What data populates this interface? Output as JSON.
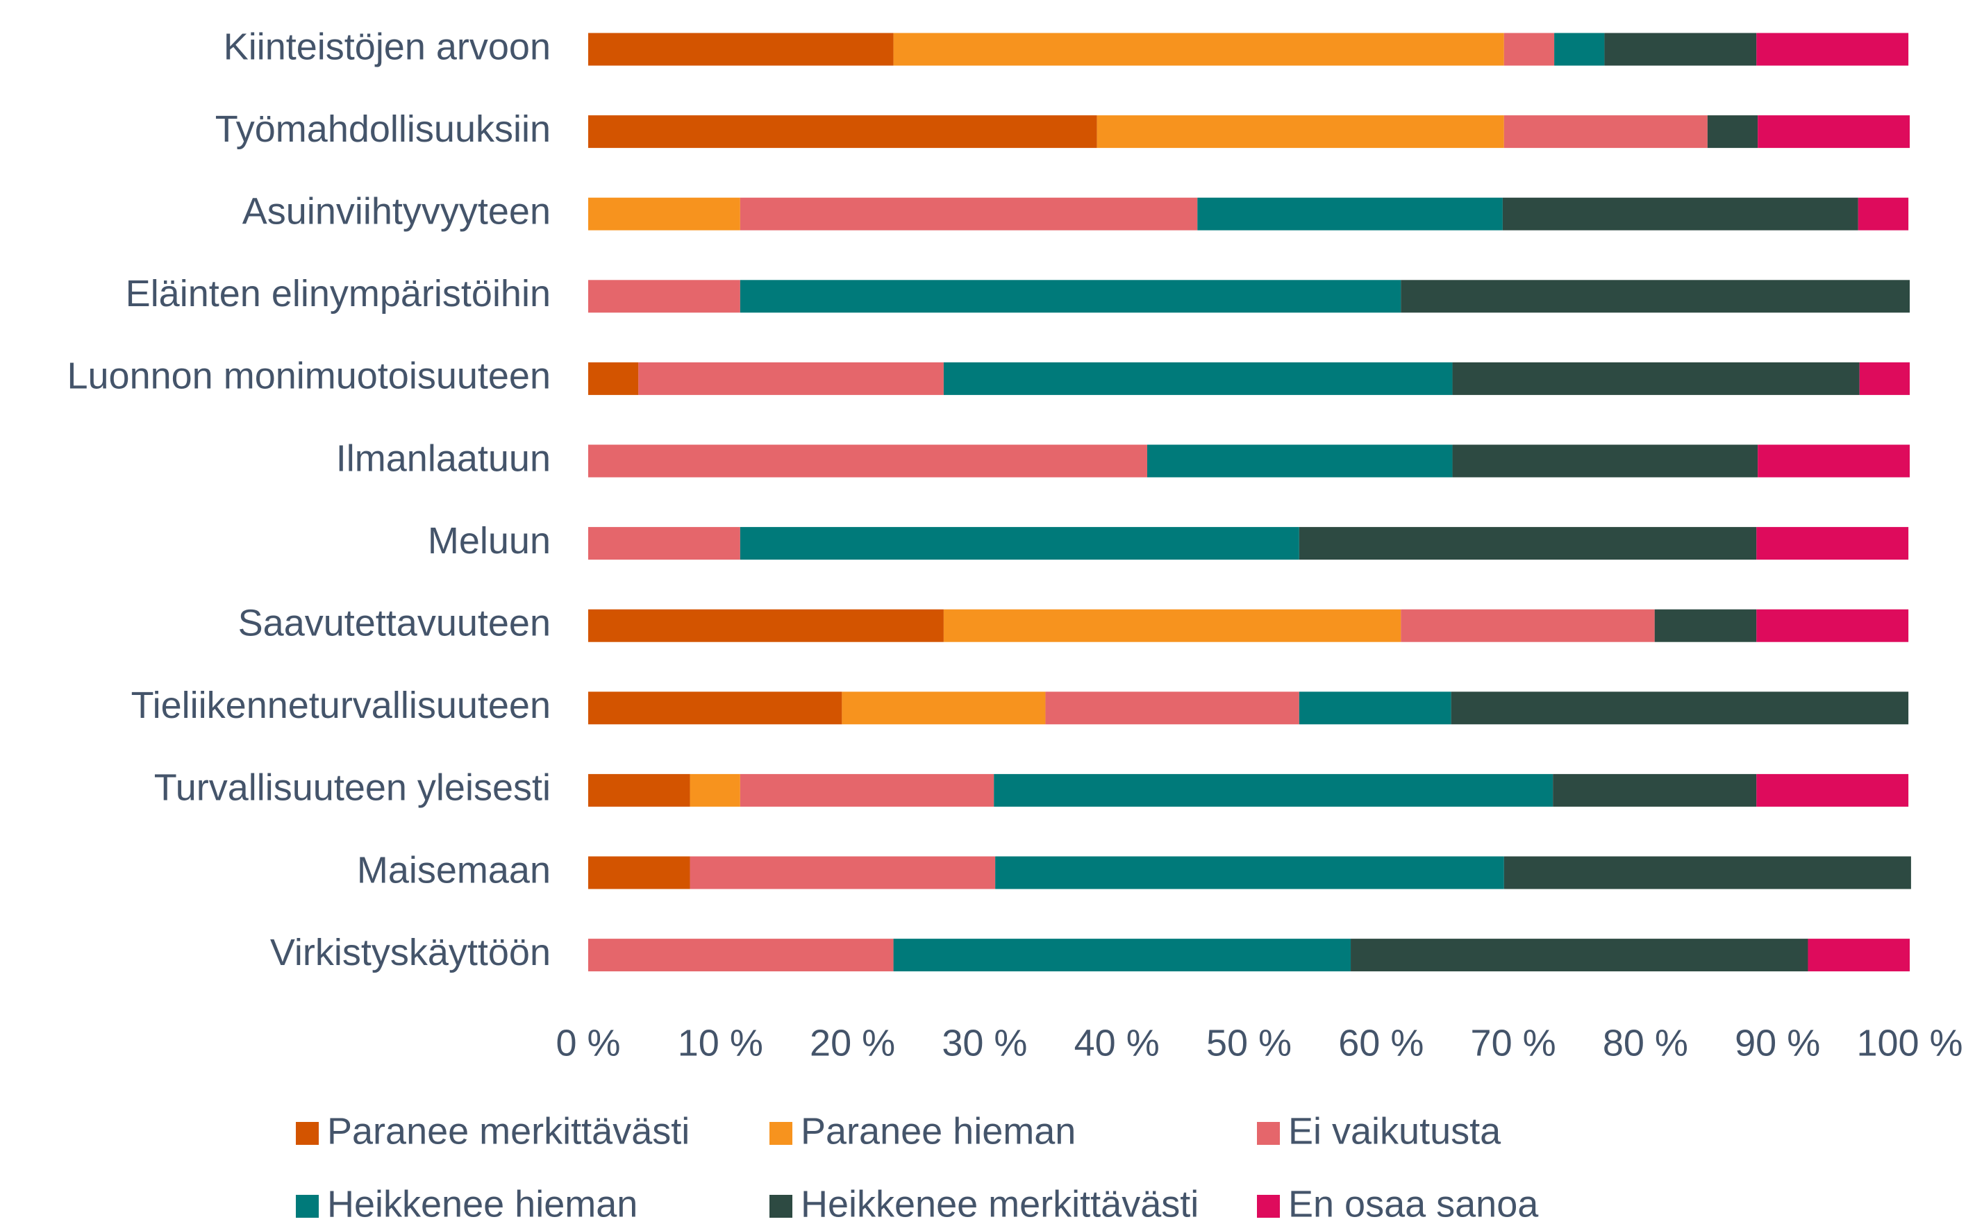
{
  "chart_data": {
    "type": "stacked-barh",
    "categories": [
      "Kiinteistöjen arvoon",
      "Työmahdollisuuksiin",
      "Asuinviihtyvyyteen",
      "Eläinten elinympäristöihin",
      "Luonnon monimuotoisuuteen",
      "Ilmanlaatuun",
      "Meluun",
      "Saavutettavuuteen",
      "Tieliikenneturvallisuuteen",
      "Turvallisuuteen yleisesti",
      "Maisemaan",
      "Virkistyskäyttöön"
    ],
    "series": [
      {
        "name": "Paranee merkittävästi",
        "color": "#d35400",
        "values": [
          23.1,
          38.5,
          0,
          0,
          3.8,
          0,
          0,
          26.9,
          19.2,
          7.7,
          7.7,
          0
        ]
      },
      {
        "name": "Paranee hieman",
        "color": "#f7931e",
        "values": [
          46.2,
          30.8,
          11.5,
          0,
          0,
          0,
          0,
          34.6,
          15.4,
          3.8,
          0,
          0
        ]
      },
      {
        "name": "Ei vaikutusta",
        "color": "#e5666b",
        "values": [
          3.8,
          15.4,
          34.6,
          11.5,
          23.1,
          42.3,
          11.5,
          19.2,
          19.2,
          19.2,
          23.1,
          23.1
        ]
      },
      {
        "name": "Heikkenee hieman",
        "color": "#007a7a",
        "values": [
          3.8,
          0,
          23.1,
          50.0,
          38.5,
          23.1,
          42.3,
          0,
          11.5,
          42.3,
          38.5,
          34.6
        ]
      },
      {
        "name": "Heikkenee merkittävästi",
        "color": "#2d4a42",
        "values": [
          11.5,
          3.8,
          26.9,
          38.5,
          30.8,
          23.1,
          34.6,
          7.7,
          34.6,
          15.4,
          30.8,
          34.6
        ]
      },
      {
        "name": "En osaa sanoa",
        "color": "#de0b5c",
        "values": [
          11.5,
          11.5,
          3.8,
          0,
          3.8,
          11.5,
          11.5,
          11.5,
          0,
          11.5,
          0,
          7.7
        ]
      }
    ],
    "xlim": [
      0,
      100
    ],
    "xticks": [
      {
        "value": 0,
        "label": "0 %"
      },
      {
        "value": 10,
        "label": "10 %"
      },
      {
        "value": 20,
        "label": "20 %"
      },
      {
        "value": 30,
        "label": "30 %"
      },
      {
        "value": 40,
        "label": "40 %"
      },
      {
        "value": 50,
        "label": "50 %"
      },
      {
        "value": 60,
        "label": "60 %"
      },
      {
        "value": 70,
        "label": "70 %"
      },
      {
        "value": 80,
        "label": "80 %"
      },
      {
        "value": 90,
        "label": "90 %"
      },
      {
        "value": 100,
        "label": "100 %"
      }
    ],
    "grid": false,
    "legend": "bottom"
  }
}
